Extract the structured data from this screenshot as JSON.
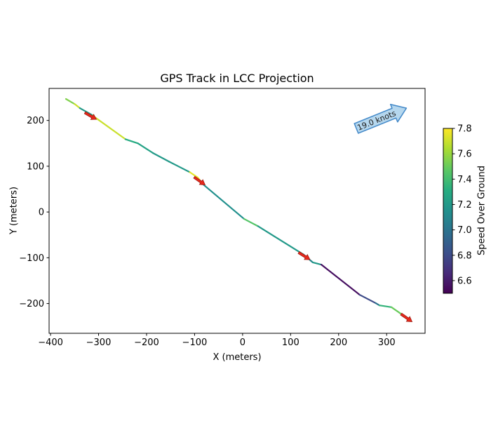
{
  "figure": {
    "title": "GPS Track in LCC Projection",
    "xlabel": "X (meters)",
    "ylabel": "Y (meters)"
  },
  "chart_data": {
    "type": "line",
    "title": "GPS Track in LCC Projection",
    "xlabel": "X (meters)",
    "ylabel": "Y (meters)",
    "grid": false,
    "xlim": [
      -403,
      380
    ],
    "ylim": [
      -265,
      270
    ],
    "xticks": [
      -400,
      -300,
      -200,
      -100,
      0,
      100,
      200,
      300
    ],
    "yticks": [
      -200,
      -100,
      0,
      100,
      200
    ],
    "colormap": "viridis",
    "colorbar": {
      "label": "Speed Over Ground",
      "vmin": 6.5,
      "vmax": 7.8,
      "ticks": [
        7.8,
        7.6,
        7.4,
        7.2,
        7.0,
        6.8,
        6.6
      ]
    },
    "track": {
      "points": [
        [
          -368,
          247
        ],
        [
          -350,
          236
        ],
        [
          -339,
          227
        ],
        [
          -312,
          211
        ],
        [
          -309,
          208
        ],
        [
          -244,
          159
        ],
        [
          -218,
          150
        ],
        [
          -187,
          129
        ],
        [
          -153,
          110
        ],
        [
          -110,
          87
        ],
        [
          -93,
          75
        ],
        [
          -83,
          61
        ],
        [
          3,
          -15
        ],
        [
          32,
          -31
        ],
        [
          127,
          -93
        ],
        [
          146,
          -110
        ],
        [
          164,
          -115
        ],
        [
          244,
          -181
        ],
        [
          277,
          -199
        ],
        [
          285,
          -204
        ],
        [
          310,
          -208
        ],
        [
          336,
          -227
        ],
        [
          345,
          -234
        ]
      ],
      "segment_speeds": [
        7.55,
        7.7,
        7.2,
        7.6,
        7.7,
        7.3,
        7.25,
        7.2,
        7.2,
        7.75,
        7.8,
        7.15,
        7.45,
        7.2,
        7.1,
        7.2,
        6.55,
        6.8,
        7.0,
        7.35,
        7.5,
        7.45
      ]
    },
    "heading_arrows": {
      "color": "#e8291c",
      "edge": "#9c1a10",
      "positions": [
        {
          "x": -317,
          "y": 210,
          "angle_deg": 30
        },
        {
          "x": -90,
          "y": 68,
          "angle_deg": 35
        },
        {
          "x": 128,
          "y": -96,
          "angle_deg": 32
        },
        {
          "x": 341,
          "y": -231,
          "angle_deg": 35
        }
      ]
    },
    "annotation": {
      "text": "19.0 knots",
      "angle_deg": -22,
      "fill": "#b5d7ee",
      "border": "#4288c8",
      "text_color": "#1a1a1a"
    }
  }
}
